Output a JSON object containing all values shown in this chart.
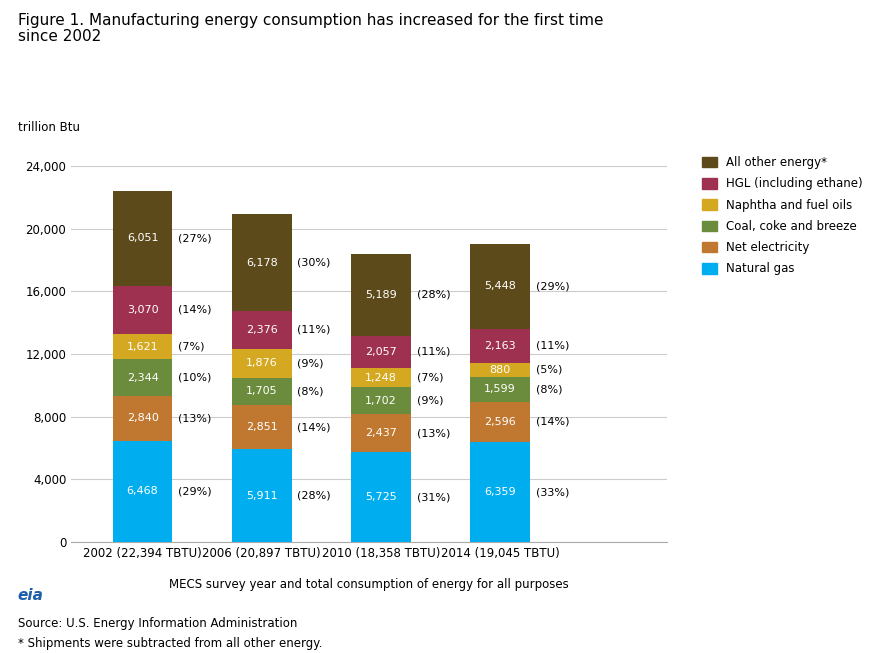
{
  "title_line1": "Figure 1. Manufacturing energy consumption has increased for the first time",
  "title_line2": "since 2002",
  "ylabel": "trillion Btu",
  "xlabel": "MECS survey year and total consumption of energy for all purposes",
  "source": "Source: U.S. Energy Information Administration",
  "footnote": "* Shipments were subtracted from all other energy.",
  "years": [
    "2002 (22,394 TBTU)",
    "2006 (20,897 TBTU)",
    "2010 (18,358 TBTU)",
    "2014 (19,045 TBTU)"
  ],
  "categories": [
    "Natural gas",
    "Net electricity",
    "Coal, coke and breeze",
    "Naphtha and fuel oils",
    "HGL (including ethane)",
    "All other energy*"
  ],
  "colors": [
    "#00AEEF",
    "#C07830",
    "#6A8C3C",
    "#D4A820",
    "#9E3050",
    "#5C4A1A"
  ],
  "values": {
    "Natural gas": [
      6468,
      5911,
      5725,
      6359
    ],
    "Net electricity": [
      2840,
      2851,
      2437,
      2596
    ],
    "Coal, coke and breeze": [
      2344,
      1705,
      1702,
      1599
    ],
    "Naphtha and fuel oils": [
      1621,
      1876,
      1248,
      880
    ],
    "HGL (including ethane)": [
      3070,
      2376,
      2057,
      2163
    ],
    "All other energy*": [
      6051,
      6178,
      5189,
      5448
    ]
  },
  "percentages": {
    "Natural gas": [
      "(29%)",
      "(28%)",
      "(31%)",
      "(33%)"
    ],
    "Net electricity": [
      "(13%)",
      "(14%)",
      "(13%)",
      "(14%)"
    ],
    "Coal, coke and breeze": [
      "(10%)",
      "(8%)",
      "(9%)",
      "(8%)"
    ],
    "Naphtha and fuel oils": [
      "(7%)",
      "(9%)",
      "(7%)",
      "(5%)"
    ],
    "HGL (including ethane)": [
      "(14%)",
      "(11%)",
      "(11%)",
      "(11%)"
    ],
    "All other energy*": [
      "(27%)",
      "(30%)",
      "(28%)",
      "(29%)"
    ]
  },
  "ylim": [
    0,
    25000
  ],
  "yticks": [
    0,
    4000,
    8000,
    12000,
    16000,
    20000,
    24000
  ],
  "bar_width": 0.5,
  "background_color": "#FFFFFF",
  "grid_color": "#CCCCCC",
  "legend_order": [
    "All other energy*",
    "HGL (including ethane)",
    "Naphtha and fuel oils",
    "Coal, coke and breeze",
    "Net electricity",
    "Natural gas"
  ]
}
